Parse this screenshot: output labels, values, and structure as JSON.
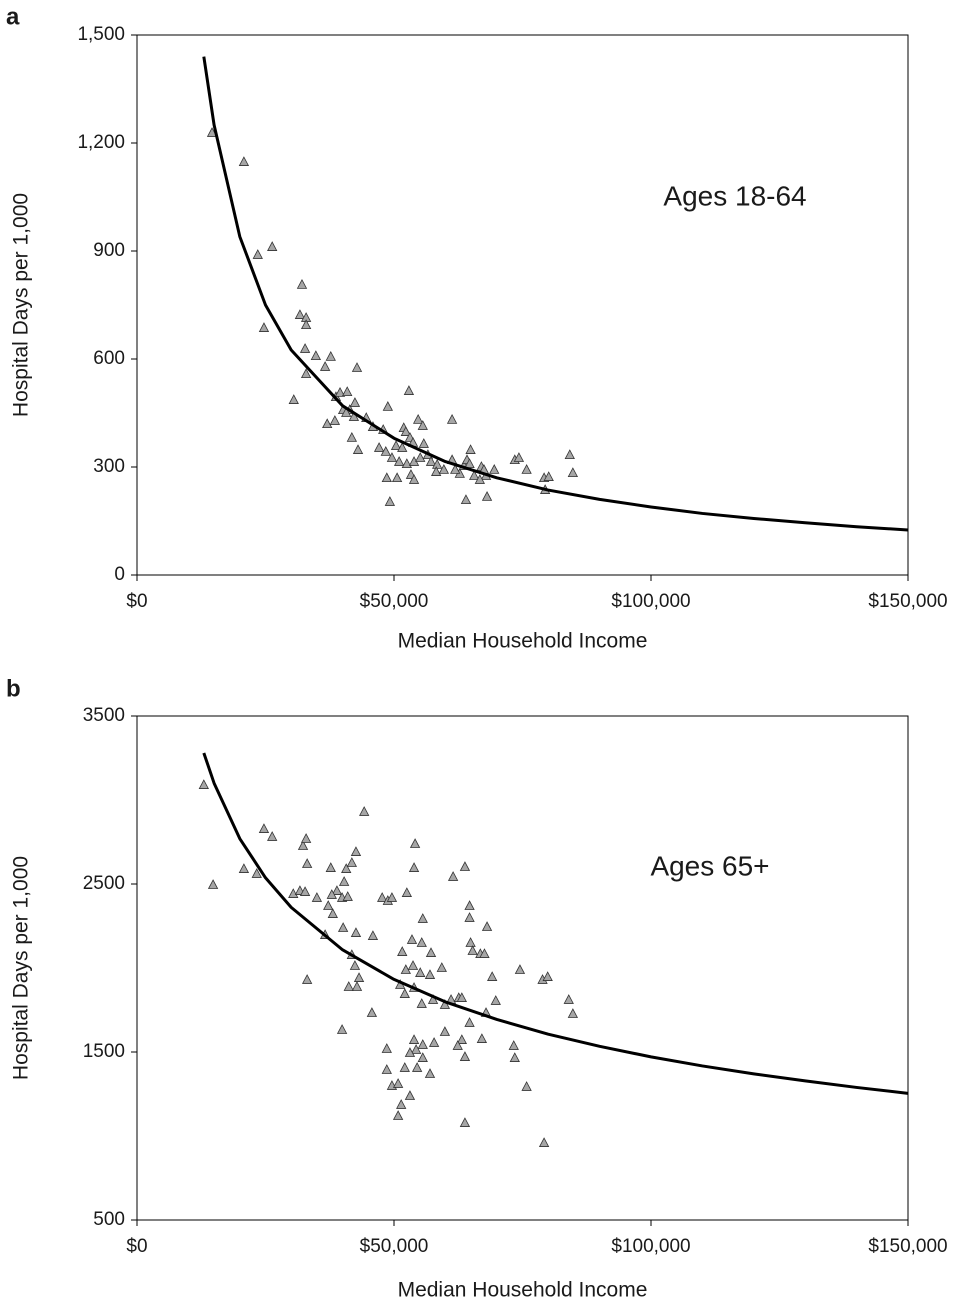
{
  "chart_data": [
    {
      "type": "scatter",
      "panel_label": "a",
      "annotation": "Ages 18-64",
      "xlabel": "Median Household Income",
      "ylabel": "Hospital Days per 1,000",
      "xlim": [
        0,
        150000
      ],
      "ylim": [
        0,
        1500
      ],
      "xticks": [
        {
          "value": 0,
          "label": "$0"
        },
        {
          "value": 50000,
          "label": "$50,000"
        },
        {
          "value": 100000,
          "label": "$100,000"
        },
        {
          "value": 150000,
          "label": "$150,000"
        }
      ],
      "yticks": [
        0,
        300,
        600,
        900,
        {
          "value": 1200,
          "label": "1,200"
        },
        {
          "value": 1500,
          "label": "1,500"
        }
      ],
      "grid": false,
      "series": [
        {
          "type": "scatter",
          "marker": "triangle",
          "color": "#a6a6a6",
          "x": [
            14600,
            20800,
            23500,
            26300,
            24700,
            32100,
            31700,
            32900,
            32900,
            32700,
            32900,
            34800,
            37700,
            36600,
            30500,
            42800,
            38700,
            39500,
            40900,
            40100,
            41400,
            42400,
            37000,
            38500,
            40700,
            42200,
            41800,
            43000,
            44600,
            45900,
            47900,
            48800,
            47100,
            48400,
            49600,
            50400,
            52900,
            51900,
            52300,
            51600,
            53100,
            53700,
            54700,
            55600,
            51000,
            52500,
            53900,
            55100,
            55800,
            56600,
            57200,
            58400,
            58200,
            53300,
            53900,
            50600,
            48600,
            49200,
            59700,
            61300,
            61300,
            62800,
            63600,
            64200,
            64900,
            64700,
            65600,
            64000,
            67000,
            67900,
            68100,
            67500,
            69500,
            73500,
            74300,
            75800,
            79200,
            80100,
            79400,
            84200,
            84800,
            66700,
            61900
          ],
          "values": [
            1228,
            1147,
            889,
            911,
            686,
            806,
            722,
            714,
            694,
            628,
            558,
            608,
            606,
            578,
            486,
            575,
            494,
            506,
            508,
            458,
            458,
            478,
            419,
            428,
            450,
            439,
            381,
            347,
            436,
            411,
            403,
            467,
            353,
            342,
            325,
            358,
            511,
            408,
            397,
            353,
            381,
            367,
            431,
            414,
            314,
            308,
            314,
            325,
            364,
            333,
            314,
            306,
            286,
            278,
            264,
            269,
            269,
            203,
            292,
            431,
            319,
            281,
            303,
            319,
            347,
            308,
            275,
            208,
            300,
            275,
            217,
            292,
            292,
            319,
            325,
            292,
            269,
            272,
            236,
            333,
            283,
            264,
            292
          ]
        },
        {
          "type": "line",
          "color": "#000000",
          "x": [
            13000,
            15000,
            20000,
            25000,
            30000,
            40000,
            50000,
            60000,
            70000,
            80000,
            90000,
            100000,
            110000,
            120000,
            130000,
            140000,
            150000
          ],
          "values": [
            1440,
            1250,
            940,
            750,
            625,
            470,
            380,
            315,
            270,
            236,
            210,
            189,
            171,
            157,
            145,
            134,
            125
          ]
        }
      ]
    },
    {
      "type": "scatter",
      "panel_label": "b",
      "annotation": "Ages 65+",
      "xlabel": "Median Household Income",
      "ylabel": "Hospital Days per 1,000",
      "xlim": [
        0,
        150000
      ],
      "ylim": [
        500,
        3500
      ],
      "xticks": [
        {
          "value": 0,
          "label": "$0"
        },
        {
          "value": 50000,
          "label": "$50,000"
        },
        {
          "value": 100000,
          "label": "$100,000"
        },
        {
          "value": 150000,
          "label": "$150,000"
        }
      ],
      "yticks": [
        500,
        1500,
        2500,
        3500
      ],
      "grid": false,
      "series": [
        {
          "type": "scatter",
          "marker": "triangle",
          "color": "#a6a6a6",
          "x": [
            13000,
            14800,
            20800,
            23300,
            24700,
            26300,
            30400,
            32300,
            32900,
            33100,
            31700,
            32700,
            35000,
            37700,
            38900,
            37900,
            37200,
            38100,
            40700,
            40300,
            39900,
            42600,
            44200,
            41800,
            41000,
            40100,
            36600,
            42600,
            45900,
            41800,
            42400,
            43200,
            41200,
            42800,
            33100,
            45700,
            39900,
            47700,
            48800,
            49600,
            52500,
            54100,
            53900,
            55600,
            53500,
            51600,
            55400,
            57200,
            52300,
            53700,
            55100,
            51200,
            52100,
            57000,
            59300,
            53900,
            55400,
            57600,
            59900,
            61100,
            62600,
            63200,
            61500,
            63800,
            64700,
            64700,
            64900,
            65300,
            66800,
            67600,
            68100,
            69100,
            69800,
            67900,
            64700,
            63200,
            59900,
            62400,
            63800,
            67100,
            57800,
            55600,
            53900,
            54300,
            53100,
            55600,
            57000,
            54500,
            52100,
            48600,
            48600,
            49600,
            50800,
            51400,
            50800,
            53100,
            63800,
            73300,
            73500,
            75800,
            74500,
            78900,
            79900,
            84000,
            84800,
            79200
          ],
          "values": [
            3089,
            2494,
            2589,
            2560,
            2827,
            2780,
            2440,
            2726,
            2768,
            2619,
            2458,
            2452,
            2417,
            2595,
            2458,
            2435,
            2369,
            2321,
            2589,
            2512,
            2417,
            2690,
            2929,
            2625,
            2423,
            2238,
            2196,
            2208,
            2190,
            2077,
            2012,
            1940,
            1887,
            1887,
            1929,
            1732,
            1631,
            2417,
            2399,
            2417,
            2446,
            2738,
            2595,
            2292,
            2167,
            2095,
            2149,
            2089,
            1988,
            2012,
            1970,
            1899,
            1845,
            1958,
            2000,
            1881,
            1786,
            1810,
            1780,
            1810,
            1821,
            1821,
            2542,
            2601,
            2369,
            2298,
            2149,
            2101,
            2083,
            2083,
            2244,
            1946,
            1804,
            1732,
            1673,
            1571,
            1619,
            1536,
            1470,
            1577,
            1554,
            1542,
            1571,
            1512,
            1494,
            1464,
            1369,
            1405,
            1405,
            1518,
            1393,
            1298,
            1310,
            1185,
            1119,
            1238,
            1077,
            1536,
            1464,
            1292,
            1988,
            1929,
            1946,
            1810,
            1726,
            958
          ]
        },
        {
          "type": "line",
          "color": "#000000",
          "x": [
            13000,
            15000,
            20000,
            25000,
            30000,
            40000,
            50000,
            60000,
            70000,
            80000,
            90000,
            100000,
            110000,
            120000,
            130000,
            140000,
            150000
          ],
          "values": [
            3280,
            3100,
            2770,
            2537,
            2361,
            2108,
            1932,
            1798,
            1694,
            1606,
            1534,
            1471,
            1417,
            1370,
            1328,
            1289,
            1254
          ]
        }
      ]
    }
  ]
}
